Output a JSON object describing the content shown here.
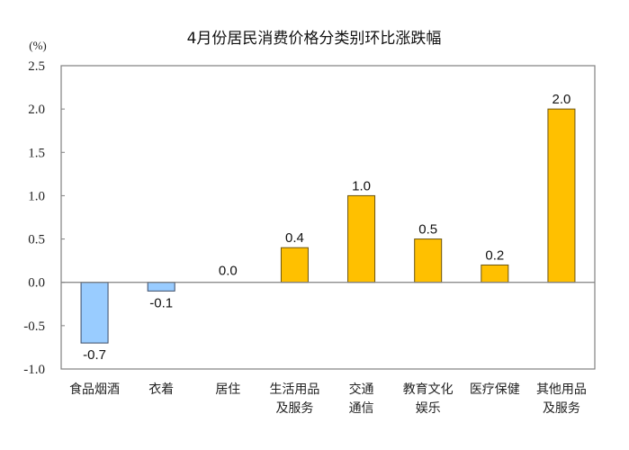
{
  "chart_data": {
    "type": "bar",
    "title": "4月份居民消费价格分类别环比涨跌幅",
    "ylabel": "(%)",
    "xlabel": "",
    "ylim": [
      -1.0,
      2.5
    ],
    "yticks": [
      "2.5",
      "2.0",
      "1.5",
      "1.0",
      "0.5",
      "0.0",
      "-0.5",
      "-1.0"
    ],
    "ytick_values": [
      2.5,
      2.0,
      1.5,
      1.0,
      0.5,
      0.0,
      -0.5,
      -1.0
    ],
    "grid": false,
    "categories": [
      [
        "食品烟酒"
      ],
      [
        "衣着"
      ],
      [
        "居住"
      ],
      [
        "生活用品",
        "及服务"
      ],
      [
        "交通",
        "通信"
      ],
      [
        "教育文化",
        "娱乐"
      ],
      [
        "医疗保健"
      ],
      [
        "其他用品",
        "及服务"
      ]
    ],
    "values": [
      -0.7,
      -0.1,
      0.0,
      0.4,
      1.0,
      0.5,
      0.2,
      2.0
    ],
    "data_labels": [
      "-0.7",
      "-0.1",
      "0.0",
      "0.4",
      "1.0",
      "0.5",
      "0.2",
      "2.0"
    ],
    "colors": {
      "positive": "#FFC000",
      "negative": "#99CCFF",
      "bar_edge": "#5a4a1a",
      "axis": "#808080"
    }
  }
}
